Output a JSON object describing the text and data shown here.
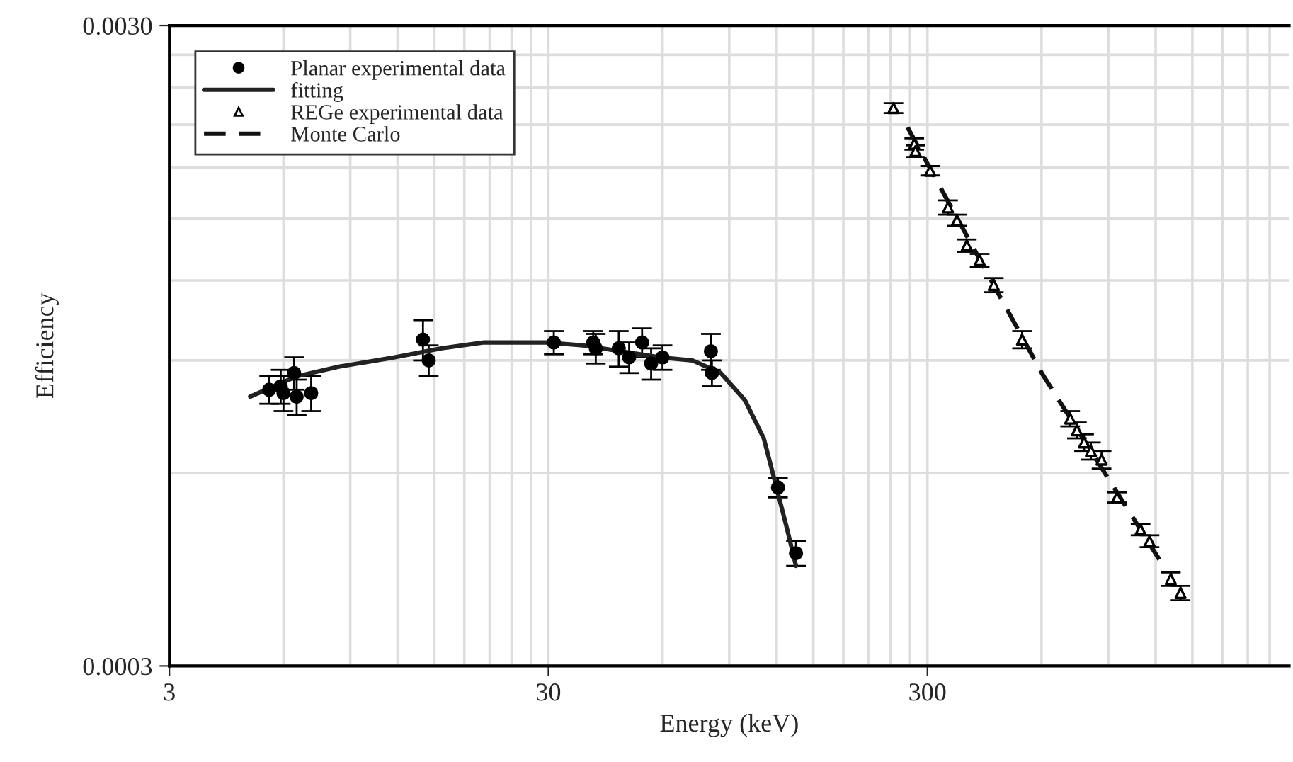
{
  "chart_data": {
    "type": "scatter",
    "xlabel": "Energy (keV)",
    "ylabel": "Efficiency",
    "log": "xy",
    "grid": true,
    "legend": "top left",
    "xlim": [
      3,
      2700
    ],
    "xticks": [
      3,
      30,
      300
    ],
    "ylim": [
      0.0003,
      0.003
    ],
    "yticks": [
      0.0003,
      {
        "value": 0.003,
        "label": "0.0030"
      }
    ],
    "series": [
      {
        "name": "Planar experimental data",
        "marker": "circle",
        "color": "#000000",
        "x": [
          5.5,
          5.9,
          6.0,
          6.4,
          6.5,
          7.1,
          14.0,
          14.5,
          31,
          39.4,
          40,
          46,
          49,
          53,
          56,
          60,
          80.5,
          81,
          121,
          135
        ],
        "values": [
          0.00081,
          0.00082,
          0.0008,
          0.00086,
          0.00079,
          0.0008,
          0.00097,
          0.0009,
          0.00096,
          0.00096,
          0.00094,
          0.00094,
          0.00091,
          0.00096,
          0.00089,
          0.00091,
          0.00093,
          0.00086,
          0.00057,
          0.00045
        ],
        "errors": [
          4e-05,
          5e-05,
          5e-05,
          5e-05,
          5e-05,
          5e-05,
          7e-05,
          5e-05,
          4e-05,
          4e-05,
          5e-05,
          6e-05,
          5e-05,
          5e-05,
          5e-05,
          4e-05,
          6e-05,
          4e-05,
          2e-05,
          2e-05
        ]
      },
      {
        "name": "fitting",
        "type": "line",
        "line_style": "solid",
        "color": "#222222",
        "x": [
          4.9,
          6.5,
          8.4,
          11.8,
          15.7,
          20.3,
          29.5,
          37,
          59,
          72,
          85.5,
          99,
          111,
          119,
          128,
          135
        ],
        "values": [
          0.00079,
          0.00085,
          0.00088,
          0.00091,
          0.00094,
          0.00096,
          0.00096,
          0.00095,
          0.00091,
          0.0009,
          0.00086,
          0.00078,
          0.00068,
          0.00058,
          0.00049,
          0.00043
        ]
      },
      {
        "name": "REGe experimental data",
        "marker": "triangle",
        "color": "#000000",
        "x": [
          244,
          277,
          279,
          305,
          340,
          359,
          381,
          412,
          449,
          533,
          714,
          744,
          777,
          810,
          864,
          949,
          1095,
          1156,
          1316,
          1396
        ],
        "values": [
          0.00223,
          0.00196,
          0.00191,
          0.00178,
          0.00156,
          0.00149,
          0.00136,
          0.00129,
          0.00118,
          0.00097,
          0.00073,
          0.0007,
          0.00067,
          0.00065,
          0.00063,
          0.00055,
          0.00049,
          0.00047,
          0.00041,
          0.00039
        ],
        "errors": [
          4e-05,
          4e-05,
          4e-05,
          3e-05,
          4e-05,
          3e-05,
          3e-05,
          3e-05,
          3e-05,
          3e-05,
          2e-05,
          2e-05,
          2e-05,
          2e-05,
          2e-05,
          1e-05,
          1e-05,
          1e-05,
          1e-05,
          1e-05
        ]
      },
      {
        "name": "Monte Carlo",
        "type": "line",
        "line_style": "dashed",
        "color": "#111111",
        "x": [
          266,
          601,
          1227
        ],
        "values": [
          0.00208,
          0.00086,
          0.00044
        ]
      }
    ]
  }
}
